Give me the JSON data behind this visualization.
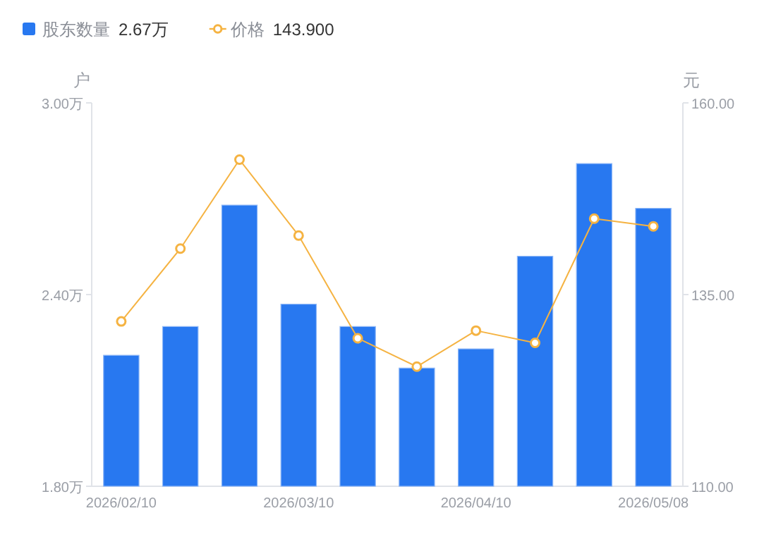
{
  "chart_data": {
    "type": "bar",
    "categories": [
      "2026/02/10",
      null,
      null,
      "2026/03/10",
      null,
      null,
      "2026/04/10",
      null,
      null,
      "2026/05/08"
    ],
    "ylabel": "户",
    "y2label": "元",
    "ylim": [
      1.8,
      3.0
    ],
    "yticks": [
      {
        "value": 1.8,
        "label": "1.80万"
      },
      {
        "value": 2.4,
        "label": "2.40万"
      },
      {
        "value": 3.0,
        "label": "3.00万"
      }
    ],
    "y2lim": [
      110,
      160
    ],
    "y2ticks": [
      {
        "value": 110,
        "label": "110.00"
      },
      {
        "value": 135,
        "label": "135.00"
      },
      {
        "value": 160,
        "label": "160.00"
      }
    ],
    "series": [
      {
        "name": "股东数量",
        "color": "#2878f0",
        "values": [
          2.21,
          2.3,
          2.68,
          2.37,
          2.3,
          2.17,
          2.23,
          2.52,
          2.81,
          2.67
        ]
      },
      {
        "name": "价格",
        "type": "line",
        "axis": "y2",
        "color": "#f5b342",
        "marker": "circle",
        "values": [
          131.5,
          141.0,
          152.6,
          142.7,
          129.3,
          125.6,
          130.3,
          128.7,
          144.9,
          143.9
        ]
      }
    ],
    "annotations": [
      "2.67万",
      "143.900"
    ],
    "legend": "top left",
    "grid": false
  }
}
